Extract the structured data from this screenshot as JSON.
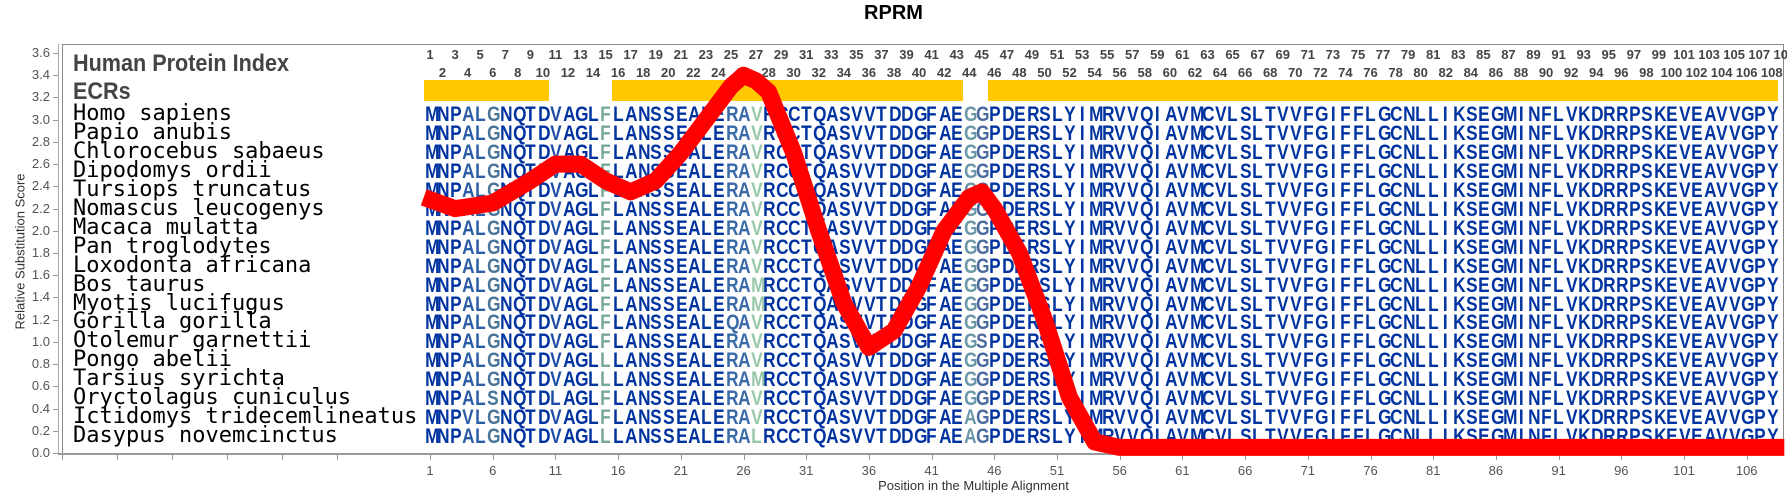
{
  "title": "RPRM",
  "header": {
    "index_label": "Human Protein Index",
    "ecr_label": "ECRs"
  },
  "colors": {
    "default_residue": "#0033a0",
    "ecr": "#ffc800",
    "line": "#ff0000"
  },
  "column_colors": {
    "4": "#2c5ea6",
    "5": "#2c5ea6",
    "6": "#4a7498",
    "11": "#1f4ea6",
    "15": "#78a898",
    "25": "#3a6aa8",
    "26": "#3a6aa8",
    "27": "#98c8a8",
    "44": "#6a98a8",
    "45": "#4a6aa0"
  },
  "ecr_ranges": [
    [
      1,
      10
    ],
    [
      16,
      43
    ],
    [
      46,
      108
    ]
  ],
  "species": [
    {
      "name": "Homo sapiens",
      "seq": "MNPALGNQTDVAGLFLANSSEALERAVRCCTQASVVTDDGFAEGGPDERSLYIMRVVQIAVMCVLSLTVVFGIFFLGCNLLIKSEGMINFLVKDRRPSKEVEAVVGPY"
    },
    {
      "name": "Papio anubis",
      "seq": "MNPALGNQTDVAGLFLANSSEALERAVRCCTQASVVTDDGFAEGGPDERSLYIMRVVQIAVMCVLSLTVVFGIFFLGCNLLIKSEGMINFLVKDRRPSKEVEAVVGPY"
    },
    {
      "name": "Chlorocebus sabaeus",
      "seq": "MNPALGNQTDVAGLFLANSSEALERAVRCCTQASVVTDDGFAEGGPDERSLYIMRVVQIAVMCVLSLTVVFGIFFLGCNLLIKSEGMINFLVKDRRPSKEVEAVVGPY"
    },
    {
      "name": "Dipodomys ordii",
      "seq": "MNPALGNQTDVAGLFLANSSEALERAVRCCTQASVVTDDGFAEGGPDERSLYIMRVVQIAVMCVLSLTVVFGIFFLGCNLLIKSEGMINFLVKDRRPSKEVEAVVGPY"
    },
    {
      "name": "Tursiops truncatus",
      "seq": "MNPALGNQTDVAGLFLANSSEALERAVRCCTQASVVTDDGFAEGGPDERSLYIMRVVQIAVMCVLSLTVVFGIFFLGCNLLIKSEGMINFLVKDRRPSKEVEAVVGPY"
    },
    {
      "name": "Nomascus leucogenys",
      "seq": "MNPALGNQTDVAGLFLANSSEALERAVRCCTQASVVTDDGFAEGGPDERSLYIMRVVQIAVMCVLSLTVVFGIFFLGCNLLIKSEGMINFLVKDRRPSKEVEAVVGPY"
    },
    {
      "name": "Macaca mulatta",
      "seq": "MNPALGNQTDVAGLFLANSSEALERAVRCCTQASVVTDDGFAEGGPDERSLYIMRVVQIAVMCVLSLTVVFGIFFLGCNLLIKSEGMINFLVKDRRPSKEVEAVVGPY"
    },
    {
      "name": "Pan troglodytes",
      "seq": "MNPALGNQTDVAGLFLANSSEALERAVRCCTQASVVTDDGFAEGGPDERSLYIMRVVQIAVMCVLSLTVVFGIFFLGCNLLIKSEGMINFLVKDRRPSKEVEAVVGPY"
    },
    {
      "name": "Loxodonta africana",
      "seq": "MNPALGNQTDVAGLFLANSSEALERAVRCCTQASVVTDDGFAEGGPDERSLYIMRVVQIAVMCVLSLTVVFGIFFLGCNLLIKSEGMINFLVKDRRPSKEVEAVVGPY"
    },
    {
      "name": "Bos taurus",
      "seq": "MNPALGNQTDVAGLFLANSSEALERAMRCCTQASVVTDDGFAEGGPDERSLYIMRVVQIAVMCVLSLTVVFGIFFLGCNLLIKSEGMINFLVKDRRPSKEVEAVVGPY"
    },
    {
      "name": "Myotis lucifugus",
      "seq": "MNPALGNQTDVAGLFLANSSEALERAMRCCTQASVVTDDGFAEGGPDERSLYIMRVVQIAVMCVLSLTVVFGIFFLGCNLLIKSEGMINFLVKDRRPSKEVEAVVGPY"
    },
    {
      "name": "Gorilla gorilla",
      "seq": "MNPALGNQTDVAGLFLANSSEALEQAVRCCTQASVVTDDGFAEGGPDERSLYIMRVVQIAVMCVLSLTVVFGIFFLGCNLLIKSEGMINFLVKDRRPSKEVEAVVGPY"
    },
    {
      "name": "Otolemur garnettii",
      "seq": "MNPALGNQTDVAGLFLANSSEALERAVRCCTQASVVTDDGFAEGSPDERSLYIMRVVQIAVMCVLSLTVVFGIFFLGCNLLIKSEGMINFLVKDRRPSKEVEAVVGPY"
    },
    {
      "name": "Pongo abelii",
      "seq": "MNPALGNQTDVAGLLLANSSEALERAVRCCTQASVVTDDGFAEGGPDERSLYIMRVVQIAVMCVLSLTVVFGIFFLGCNLLIKSEGMINFLVKDRRPSKEVEAVVGPY"
    },
    {
      "name": "Tarsius syrichta",
      "seq": "MNPALGNQTDVAGLLLANSSEALERAMRCCTQASVVTDDGFAEGGPDERSLYIMRVVQIAVMCVLSLTVVFGIFFLGCNLLIKSEGMINFLVKDRRPSKEVEAVVGPY"
    },
    {
      "name": "Oryctolagus cuniculus",
      "seq": "MNPALSNQTDLAGLFLANSSEALERAVRCCTQASVVTDDGFAEGGPDERSLYIMRVVQIAVMCVLSLTVVFGIFFLGCNLLIKSEGMINFLVKDRRPSKEVEAVVGPY"
    },
    {
      "name": "Ictidomys tridecemlineatus",
      "seq": "MNPVLGNQTDVAGLFLANSSEALERAVRCCTQASVVTDDGFAEAGPDERSLYIMRVVQIAVMCVLSLTVVFGIFFLGCNLLIKSEGMINFLVKDRRPSKEVEAVVGPY"
    },
    {
      "name": "Dasypus novemcinctus",
      "seq": "MNPALGNQTDVAGLLLANSSEALERALRCCTQASVVTDDGFAEAGPDERSLYIMRVVQIAVMCVLSLTVVFGIFFLGCNLLIKSEGMINFLVKDRRPSKEVEAVVGPY"
    }
  ],
  "chart_data": {
    "type": "line",
    "title": "RPRM",
    "xlabel": "Position in the Multiple Alignment",
    "ylabel": "Relative Substitution Score",
    "ylim": [
      0,
      3.6
    ],
    "xlim": [
      1,
      109
    ],
    "yticks": [
      "0.0",
      "0.2",
      "0.4",
      "0.6",
      "0.8",
      "1.0",
      "1.2",
      "1.4",
      "1.6",
      "1.8",
      "2.0",
      "2.2",
      "2.4",
      "2.6",
      "2.8",
      "3.0",
      "3.2",
      "3.4",
      "3.6"
    ],
    "xticks": [
      "1",
      "6",
      "11",
      "16",
      "21",
      "26",
      "31",
      "36",
      "41",
      "46",
      "51",
      "56",
      "61",
      "66",
      "71",
      "76",
      "81",
      "86",
      "91",
      "96",
      "101",
      "106"
    ],
    "top_position_max": 109,
    "series": [
      {
        "name": "Relative Substitution Score",
        "x": [
          0.5,
          3,
          6,
          9,
          11,
          13,
          15,
          17,
          19,
          21,
          23,
          25,
          26,
          27,
          28,
          30,
          32,
          34,
          36,
          38,
          40,
          42,
          44,
          45,
          46,
          48,
          50,
          52,
          54,
          56,
          70,
          90,
          109
        ],
        "y": [
          2.3,
          2.2,
          2.25,
          2.45,
          2.6,
          2.6,
          2.45,
          2.35,
          2.45,
          2.7,
          3.0,
          3.3,
          3.4,
          3.35,
          3.25,
          2.7,
          2.0,
          1.35,
          0.95,
          1.1,
          1.5,
          2.0,
          2.3,
          2.35,
          2.2,
          1.8,
          1.2,
          0.5,
          0.1,
          0.05,
          0.05,
          0.05,
          0.05
        ]
      }
    ]
  }
}
